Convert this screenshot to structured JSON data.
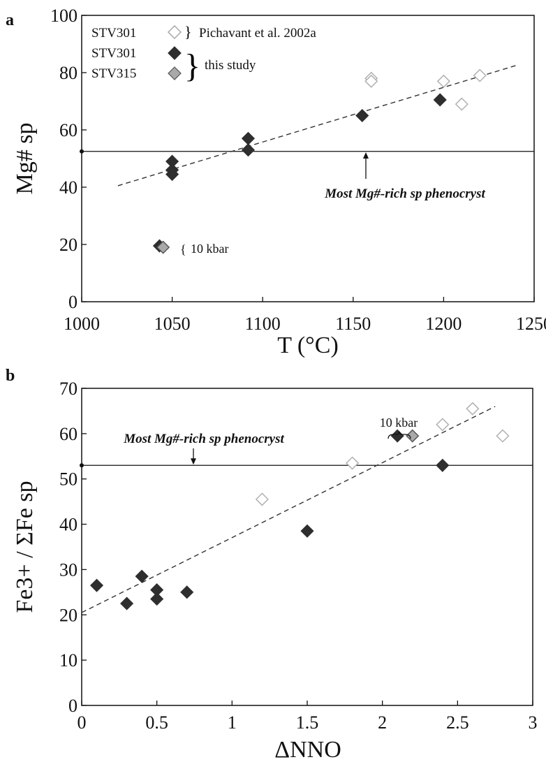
{
  "chart_data": [
    {
      "panel": "a",
      "type": "scatter",
      "xlabel": "T (°C)",
      "ylabel": "Mg# sp",
      "xlim": [
        1000,
        1250
      ],
      "ylim": [
        0,
        100
      ],
      "xticks": [
        "1000",
        "1050",
        "1100",
        "1150",
        "1200",
        "1250"
      ],
      "yticks": [
        "0",
        "20",
        "40",
        "60",
        "80",
        "100"
      ],
      "legend": {
        "rows": [
          "STV301",
          "STV301",
          "STV315"
        ],
        "pichavant_label": "Pichavant et al. 2002a",
        "study_label": "this study"
      },
      "hline": {
        "y": 52.5,
        "label": "Most Mg#-rich sp phenocryst"
      },
      "trendline": {
        "x": [
          1020,
          1240
        ],
        "y": [
          40.5,
          82.5
        ]
      },
      "annotation_10kbar": "10 kbar",
      "series": [
        {
          "key": "pichavant_stv301",
          "style": "open",
          "points": [
            [
              1160,
              78
            ],
            [
              1160,
              77
            ],
            [
              1200,
              77
            ],
            [
              1210,
              69
            ],
            [
              1220,
              79
            ]
          ]
        },
        {
          "key": "this_study_stv301",
          "style": "black",
          "points": [
            [
              1050,
              49
            ],
            [
              1050,
              46
            ],
            [
              1050,
              44.5
            ],
            [
              1092,
              57
            ],
            [
              1092,
              53
            ],
            [
              1155,
              65
            ],
            [
              1198,
              70.5
            ],
            [
              1043,
              19.5
            ]
          ]
        },
        {
          "key": "this_study_stv315",
          "style": "grey",
          "points": [
            [
              1045,
              19
            ]
          ]
        }
      ],
      "colors": {
        "black": "#2e2e2e",
        "grey": "#a9a9a9",
        "open_stroke": "#b0b0b0",
        "trend": "#333333"
      }
    },
    {
      "panel": "b",
      "type": "scatter",
      "xlabel": "ΔNNO",
      "ylabel": "Fe3+ / ΣFe sp",
      "xlim": [
        0,
        3
      ],
      "ylim": [
        0,
        70
      ],
      "xticks": [
        "0",
        "0.5",
        "1",
        "1.5",
        "2",
        "2.5",
        "3"
      ],
      "yticks": [
        "0",
        "10",
        "20",
        "30",
        "40",
        "50",
        "60",
        "70"
      ],
      "hline": {
        "y": 53,
        "label": "Most Mg#-rich sp phenocryst"
      },
      "trendline": {
        "x": [
          0,
          2.75
        ],
        "y": [
          20.5,
          66
        ]
      },
      "annotation_10kbar": "10 kbar",
      "series": [
        {
          "key": "pichavant_stv301",
          "style": "open",
          "points": [
            [
              1.2,
              45.5
            ],
            [
              1.8,
              53.5
            ],
            [
              2.4,
              62
            ],
            [
              2.6,
              65.5
            ],
            [
              2.8,
              59.5
            ]
          ]
        },
        {
          "key": "this_study_stv301",
          "style": "black",
          "points": [
            [
              0.1,
              26.5
            ],
            [
              0.3,
              22.5
            ],
            [
              0.4,
              28.5
            ],
            [
              0.5,
              25.5
            ],
            [
              0.5,
              23.5
            ],
            [
              0.7,
              25
            ],
            [
              1.5,
              38.5
            ],
            [
              2.1,
              59.5
            ],
            [
              2.4,
              53
            ]
          ]
        },
        {
          "key": "this_study_stv315",
          "style": "grey",
          "points": [
            [
              2.2,
              59.5
            ]
          ]
        }
      ],
      "colors": {
        "black": "#2e2e2e",
        "grey": "#a9a9a9",
        "open_stroke": "#b0b0b0",
        "trend": "#333333"
      }
    }
  ],
  "panel_labels": {
    "a": "a",
    "b": "b"
  }
}
